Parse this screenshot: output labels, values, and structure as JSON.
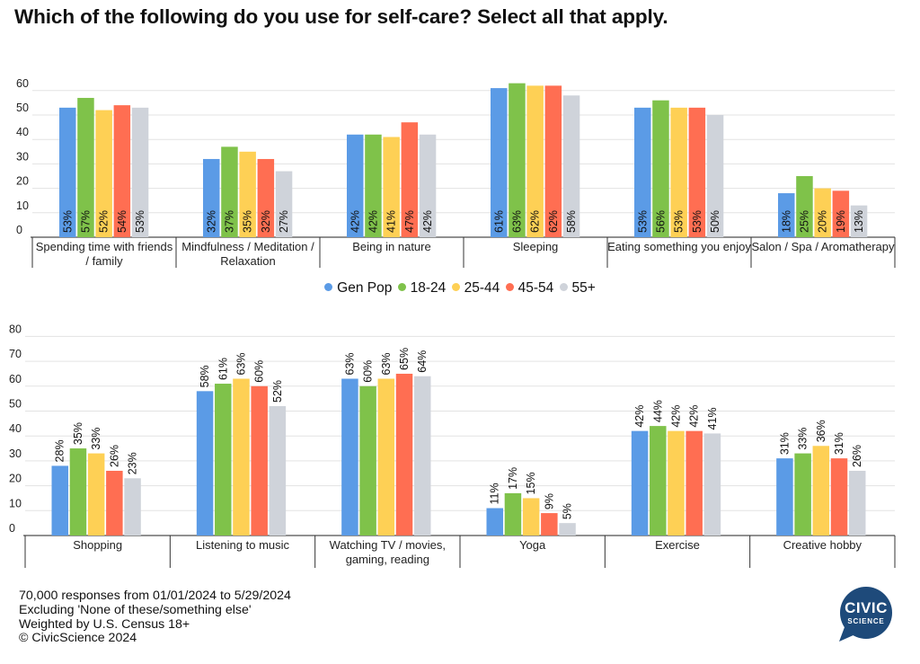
{
  "title": "Which of the following do you use for self-care? Select all that apply.",
  "legend": [
    {
      "name": "Gen Pop",
      "color": "#5b9be6"
    },
    {
      "name": "18-24",
      "color": "#7fc24a"
    },
    {
      "name": "25-44",
      "color": "#fed055"
    },
    {
      "name": "45-54",
      "color": "#ff6e52"
    },
    {
      "name": "55+",
      "color": "#cfd3da"
    }
  ],
  "chart_data": [
    {
      "type": "bar",
      "ylim": [
        0,
        60
      ],
      "yticks": [
        0,
        10,
        20,
        30,
        40,
        50,
        60
      ],
      "label_position": "inside",
      "categories": [
        [
          "Spending time with friends",
          "/ family"
        ],
        [
          "Mindfulness / Meditation /",
          "Relaxation"
        ],
        [
          "Being in nature"
        ],
        [
          "Sleeping"
        ],
        [
          "Eating something you enjoy"
        ],
        [
          "Salon / Spa / Aromatherapy"
        ]
      ],
      "series": [
        {
          "name": "Gen Pop",
          "values": [
            53,
            32,
            42,
            61,
            53,
            18
          ]
        },
        {
          "name": "18-24",
          "values": [
            57,
            37,
            42,
            63,
            56,
            25
          ]
        },
        {
          "name": "25-44",
          "values": [
            52,
            35,
            41,
            62,
            53,
            20
          ]
        },
        {
          "name": "45-54",
          "values": [
            54,
            32,
            47,
            62,
            53,
            19
          ]
        },
        {
          "name": "55+",
          "values": [
            53,
            27,
            42,
            58,
            50,
            13
          ]
        }
      ]
    },
    {
      "type": "bar",
      "ylim": [
        0,
        80
      ],
      "yticks": [
        0,
        10,
        20,
        30,
        40,
        50,
        60,
        70,
        80
      ],
      "label_position": "above",
      "categories": [
        [
          "Shopping"
        ],
        [
          "Listening to music"
        ],
        [
          "Watching TV / movies,",
          "gaming, reading"
        ],
        [
          "Yoga"
        ],
        [
          "Exercise"
        ],
        [
          "Creative hobby"
        ]
      ],
      "series": [
        {
          "name": "Gen Pop",
          "values": [
            28,
            58,
            63,
            11,
            42,
            31
          ]
        },
        {
          "name": "18-24",
          "values": [
            35,
            61,
            60,
            17,
            44,
            33
          ]
        },
        {
          "name": "25-44",
          "values": [
            33,
            63,
            63,
            15,
            42,
            36
          ]
        },
        {
          "name": "45-54",
          "values": [
            26,
            60,
            65,
            9,
            42,
            31
          ]
        },
        {
          "name": "55+",
          "values": [
            23,
            52,
            64,
            5,
            41,
            26
          ]
        }
      ]
    }
  ],
  "footer": [
    "70,000 responses from 01/01/2024 to 5/29/2024",
    "Excluding 'None of these/something else'",
    "Weighted by U.S. Census 18+",
    "© CivicScience 2024"
  ],
  "logo": {
    "line1": "CIVIC",
    "line2": "SCIENCE",
    "color": "#1e4a7a"
  }
}
